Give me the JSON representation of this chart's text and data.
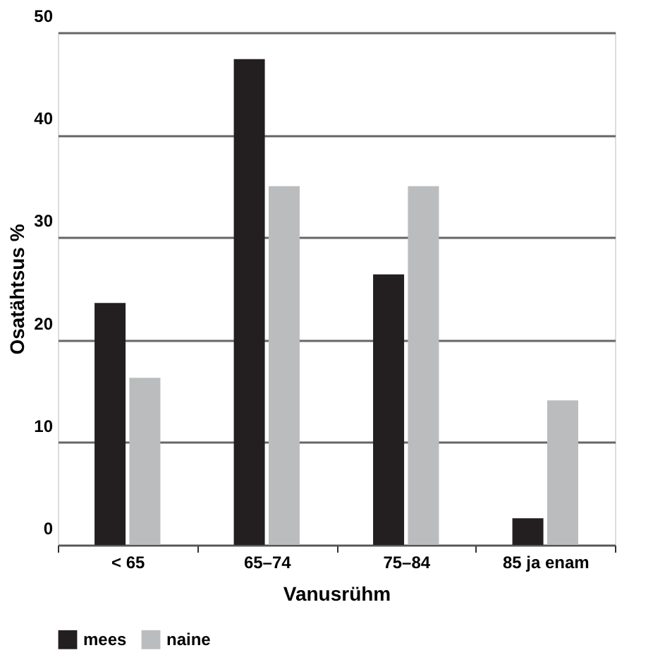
{
  "chart_data": {
    "type": "bar",
    "xlabel": "Vanusrühm",
    "ylabel": "Osatähtsus %",
    "categories": [
      "< 65",
      "65–74",
      "75–84",
      "85 ja enam"
    ],
    "series": [
      {
        "name": "mees",
        "color": "#231f20",
        "values": [
          23.6,
          47.4,
          26.4,
          2.6
        ]
      },
      {
        "name": "naine",
        "color": "#bbbcbe",
        "values": [
          16.3,
          35.0,
          35.0,
          14.1
        ]
      }
    ],
    "ylim": [
      0,
      50
    ],
    "yticks": [
      0,
      10,
      20,
      30,
      40,
      50
    ],
    "grid": "y",
    "legend": "bottom"
  }
}
